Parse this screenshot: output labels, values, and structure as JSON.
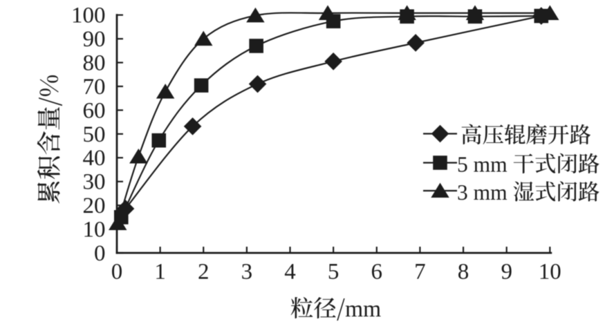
{
  "figure": {
    "background": "#ffffff",
    "ink_color": "#1e1e1e"
  },
  "chart_data": {
    "type": "line",
    "title": "",
    "xlabel": "粒径/mm",
    "ylabel": "累积含量/%",
    "xlim": [
      0,
      10
    ],
    "ylim": [
      0,
      100
    ],
    "xticks": [
      0,
      1,
      2,
      3,
      4,
      5,
      6,
      7,
      8,
      9,
      10
    ],
    "yticks": [
      0,
      10,
      20,
      30,
      40,
      50,
      60,
      70,
      80,
      90,
      100
    ],
    "grid": false,
    "legend_position": "right-middle",
    "series": [
      {
        "name": "高压辊磨开路",
        "marker": "diamond",
        "x": [
          0.2,
          1.75,
          3.25,
          5.0,
          6.9,
          9.8
        ],
        "y": [
          18.6,
          53.2,
          71.0,
          80.5,
          88.3,
          99.6
        ]
      },
      {
        "name": "5 mm 干式闭路",
        "marker": "square",
        "x": [
          0.1,
          0.97,
          1.95,
          3.22,
          5.0,
          6.7,
          8.27,
          9.8
        ],
        "y": [
          15.0,
          47.3,
          70.4,
          87.0,
          97.4,
          99.4,
          99.4,
          99.6
        ]
      },
      {
        "name": "3 mm 湿式闭路",
        "marker": "triangle",
        "x": [
          0.02,
          0.5,
          1.12,
          2.0,
          3.2,
          4.87,
          6.7,
          8.27,
          10.0
        ],
        "y": [
          12.5,
          40.5,
          67.8,
          90.0,
          99.8,
          100.8,
          100.8,
          100.8,
          100.8
        ]
      }
    ]
  },
  "legend": {
    "items": [
      {
        "label": "高压辊磨开路",
        "marker": "diamond"
      },
      {
        "label": "5 mm 干式闭路",
        "marker": "square"
      },
      {
        "label": "3 mm 湿式闭路",
        "marker": "triangle"
      }
    ]
  }
}
